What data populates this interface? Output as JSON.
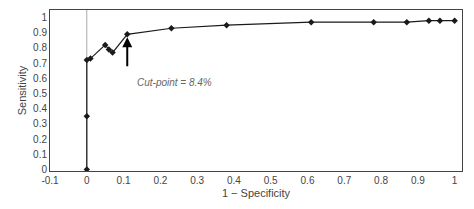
{
  "chart_data": {
    "type": "line",
    "x": [
      0.0,
      0.0,
      0.0,
      0.01,
      0.05,
      0.06,
      0.07,
      0.11,
      0.23,
      0.38,
      0.61,
      0.78,
      0.87,
      0.93,
      0.96,
      1.0
    ],
    "values": [
      0.0,
      0.35,
      0.72,
      0.73,
      0.82,
      0.79,
      0.77,
      0.89,
      0.93,
      0.95,
      0.97,
      0.97,
      0.97,
      0.98,
      0.98,
      0.98
    ],
    "color": "#1a1a1a",
    "marker": "diamond",
    "line_style": "solid",
    "xlabel": "1 − Specificity",
    "ylabel": "Sensitivity",
    "xlim": [
      -0.1,
      1.02
    ],
    "ylim": [
      -0.01,
      1.05
    ],
    "xticks": [
      -0.1,
      0,
      0.1,
      0.2,
      0.3,
      0.4,
      0.5,
      0.6,
      0.7,
      0.8,
      0.9,
      1
    ],
    "yticks": [
      0,
      0.1,
      0.2,
      0.3,
      0.4,
      0.5,
      0.6,
      0.7,
      0.8,
      0.9,
      1
    ],
    "grid": false,
    "vlines": [
      {
        "x": 0.0,
        "color": "#aaaaaa"
      }
    ],
    "arrows": [
      {
        "x": 0.11,
        "y_start": 0.67,
        "y_end": 0.87,
        "color": "#000000"
      }
    ],
    "annotations": [
      {
        "text": "Cut-point = 8.4%",
        "x": 0.13,
        "y": 0.62,
        "color": "#666666"
      }
    ]
  }
}
